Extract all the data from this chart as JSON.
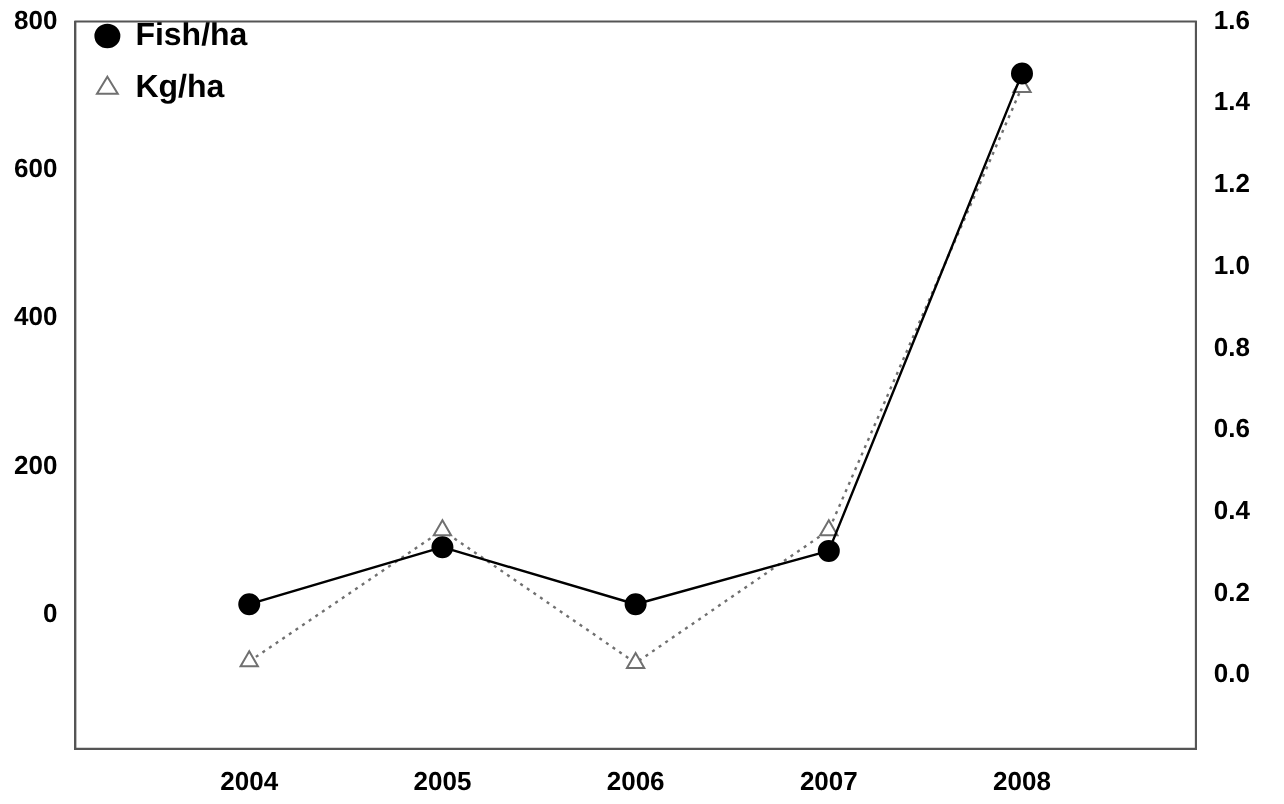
{
  "chart_data": {
    "type": "line",
    "x": [
      2004,
      2005,
      2006,
      2007,
      2008
    ],
    "xlim": [
      2003.1,
      2008.9
    ],
    "xticks": [
      2004,
      2005,
      2006,
      2007,
      2008
    ],
    "ylim": [
      -181,
      800
    ],
    "yticks": [
      0,
      200,
      400,
      600,
      800
    ],
    "y2lim": [
      -0.18,
      1.6
    ],
    "y2ticks": [
      {
        "value": 0,
        "label": "0.0"
      },
      {
        "value": 0.2,
        "label": "0.2"
      },
      {
        "value": 0.4,
        "label": "0.4"
      },
      {
        "value": 0.6,
        "label": "0.6"
      },
      {
        "value": 0.8,
        "label": "0.8"
      },
      {
        "value": 1,
        "label": "1.0"
      },
      {
        "value": 1.2,
        "label": "1.2"
      },
      {
        "value": 1.4,
        "label": "1.4"
      },
      {
        "value": 1.6,
        "label": "1.6"
      }
    ],
    "series": [
      {
        "name": "Fish/ha",
        "color": "#000000",
        "values": [
          14,
          91,
          14,
          86,
          730
        ],
        "marker": "circle",
        "line_style": "solid"
      },
      {
        "name": "Kg/ha",
        "color": "#707070",
        "values": [
          0.034,
          0.355,
          0.03,
          0.355,
          1.44
        ],
        "axis": "y2",
        "marker": "triangle",
        "line_style": "dotted"
      }
    ],
    "legend": "top left",
    "grid": false
  }
}
